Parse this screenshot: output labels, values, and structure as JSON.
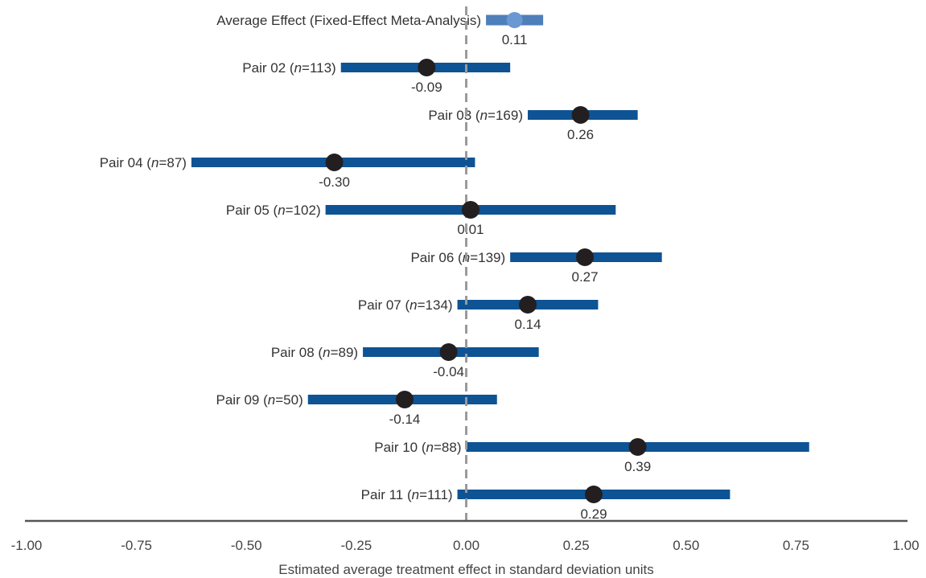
{
  "chart_data": {
    "type": "forest",
    "xlabel": "Estimated average treatment effect in standard deviation units",
    "xlim": [
      -1.0,
      1.0
    ],
    "xticks": [
      "-1.00",
      "-0.75",
      "-0.50",
      "-0.25",
      "0.00",
      "0.25",
      "0.50",
      "0.75",
      "1.00"
    ],
    "xtick_values": [
      -1.0,
      -0.75,
      -0.5,
      -0.25,
      0.0,
      0.25,
      0.5,
      0.75,
      1.0
    ],
    "reference_line": 0.0,
    "rows": [
      {
        "name": "Average Effect (Fixed-Effect Meta-Analysis)",
        "n": "",
        "estimate": 0.11,
        "estimate_label": "0.11",
        "ci_low": 0.045,
        "ci_high": 0.175,
        "summary": true
      },
      {
        "name": "Pair 02",
        "n": "113",
        "estimate": -0.09,
        "estimate_label": "-0.09",
        "ci_low": -0.285,
        "ci_high": 0.1
      },
      {
        "name": "Pair 03",
        "n": "169",
        "estimate": 0.26,
        "estimate_label": "0.26",
        "ci_low": 0.14,
        "ci_high": 0.39
      },
      {
        "name": "Pair 04",
        "n": "87",
        "estimate": -0.3,
        "estimate_label": "-0.30",
        "ci_low": -0.625,
        "ci_high": 0.02
      },
      {
        "name": "Pair 05",
        "n": "102",
        "estimate": 0.01,
        "estimate_label": "0.01",
        "ci_low": -0.32,
        "ci_high": 0.34
      },
      {
        "name": "Pair 06",
        "n": "139",
        "estimate": 0.27,
        "estimate_label": "0.27",
        "ci_low": 0.1,
        "ci_high": 0.445
      },
      {
        "name": "Pair 07",
        "n": "134",
        "estimate": 0.14,
        "estimate_label": "0.14",
        "ci_low": -0.02,
        "ci_high": 0.3
      },
      {
        "name": "Pair 08",
        "n": "89",
        "estimate": -0.04,
        "estimate_label": "-0.04",
        "ci_low": -0.235,
        "ci_high": 0.165
      },
      {
        "name": "Pair 09",
        "n": "50",
        "estimate": -0.14,
        "estimate_label": "-0.14",
        "ci_low": -0.36,
        "ci_high": 0.07
      },
      {
        "name": "Pair 10",
        "n": "88",
        "estimate": 0.39,
        "estimate_label": "0.39",
        "ci_low": 0.0,
        "ci_high": 0.78
      },
      {
        "name": "Pair 11",
        "n": "111",
        "estimate": 0.29,
        "estimate_label": "0.29",
        "ci_low": -0.02,
        "ci_high": 0.6
      }
    ],
    "colors": {
      "ci_bar": "#0e5394",
      "summary_bar": "#4f7fba",
      "summary_point": "#6a98d2",
      "point": "#231f20",
      "reference_line": "#9a9a9a",
      "axis": "#555555"
    }
  }
}
